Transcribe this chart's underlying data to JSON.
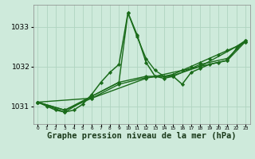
{
  "bg_color": "#ceeadb",
  "grid_color": "#b0d4c0",
  "line_color": "#1a6b1a",
  "marker_color": "#1a6b1a",
  "xlabel": "Graphe pression niveau de la mer (hPa)",
  "xlabel_fontsize": 7.5,
  "ytick_fontsize": 6.5,
  "xtick_fontsize": 4.2,
  "yticks": [
    1031,
    1032,
    1033
  ],
  "ylim": [
    1030.55,
    1033.55
  ],
  "xlim": [
    -0.5,
    23.5
  ],
  "xticks": [
    0,
    1,
    2,
    3,
    4,
    5,
    6,
    7,
    8,
    9,
    10,
    11,
    12,
    13,
    14,
    15,
    16,
    17,
    18,
    19,
    20,
    21,
    22,
    23
  ],
  "series": [
    {
      "x": [
        0,
        1,
        2,
        3,
        4,
        5,
        6,
        7,
        8,
        9,
        10,
        11,
        12,
        13,
        14,
        15,
        16,
        17,
        18,
        19,
        20,
        21,
        22,
        23
      ],
      "y": [
        1031.1,
        1031.0,
        1030.9,
        1030.85,
        1030.9,
        1031.05,
        1031.3,
        1031.6,
        1031.85,
        1032.05,
        1033.35,
        1032.8,
        1032.1,
        1031.75,
        1031.7,
        1031.75,
        1031.55,
        1031.85,
        1031.95,
        1032.05,
        1032.1,
        1032.15,
        1032.45,
        1032.65
      ],
      "lw": 1.1
    },
    {
      "x": [
        0,
        3,
        6,
        9,
        10,
        11,
        12,
        13,
        14,
        15,
        16,
        17,
        18,
        19,
        20,
        21,
        22,
        23
      ],
      "y": [
        1031.1,
        1030.85,
        1031.25,
        1031.6,
        1033.35,
        1032.75,
        1032.2,
        1031.9,
        1031.75,
        1031.8,
        1031.9,
        1032.0,
        1032.1,
        1032.2,
        1032.3,
        1032.4,
        1032.5,
        1032.65
      ],
      "lw": 1.0
    },
    {
      "x": [
        0,
        3,
        6,
        9,
        12,
        15,
        18,
        21,
        23
      ],
      "y": [
        1031.1,
        1030.9,
        1031.25,
        1031.6,
        1031.75,
        1031.75,
        1032.05,
        1032.2,
        1032.65
      ],
      "lw": 1.0
    },
    {
      "x": [
        0,
        3,
        6,
        9,
        12,
        15,
        18,
        21,
        23
      ],
      "y": [
        1031.1,
        1030.9,
        1031.2,
        1031.55,
        1031.72,
        1031.77,
        1032.0,
        1032.15,
        1032.62
      ],
      "lw": 1.0
    },
    {
      "x": [
        0,
        6,
        12,
        18,
        23
      ],
      "y": [
        1031.1,
        1031.2,
        1031.7,
        1032.0,
        1032.62
      ],
      "lw": 1.0
    }
  ]
}
